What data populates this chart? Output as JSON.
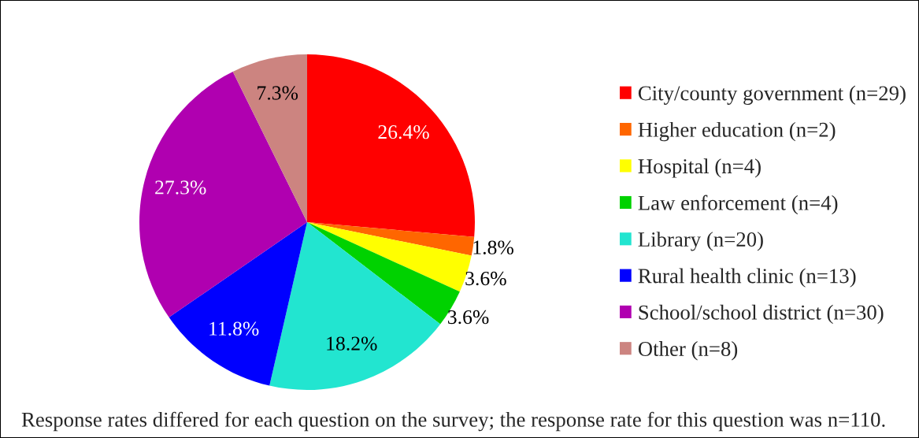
{
  "chart_data": {
    "type": "pie",
    "categories": [
      "City/county government (n=29)",
      "Higher education (n=2)",
      "Hospital (n=4)",
      "Law enforcement (n=4)",
      "Library (n=20)",
      "Rural health clinic (n=13)",
      "School/school district (n=30)",
      "Other (n=8)"
    ],
    "values": [
      26.4,
      1.8,
      3.6,
      3.6,
      18.2,
      11.8,
      27.3,
      7.3
    ],
    "colors": [
      "#ff0000",
      "#ff6600",
      "#ffff00",
      "#00d200",
      "#22e5d0",
      "#0000ff",
      "#b000b0",
      "#cc8480"
    ],
    "value_labels": [
      "26.4%",
      "1.8%",
      "3.6%",
      "3.6%",
      "18.2%",
      "11.8%",
      "27.3%",
      "7.3%"
    ],
    "legend": "right",
    "annotations": [
      "Response rates differed for each question on the survey; the response rate for this question was n=110."
    ]
  }
}
